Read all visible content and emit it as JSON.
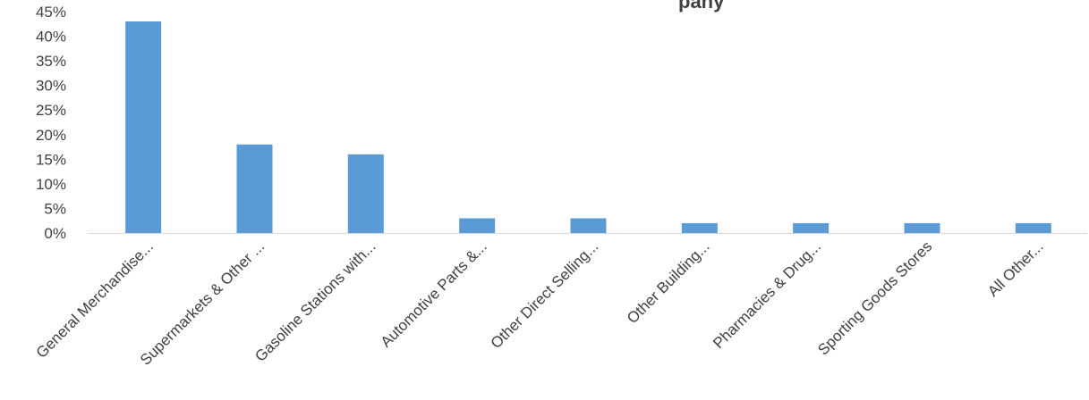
{
  "chart_data": {
    "type": "bar",
    "title": "",
    "title_visible_fragment": "pany",
    "xlabel": "",
    "ylabel": "",
    "categories": [
      "General Merchandise...",
      "Supermarkets & Other ...",
      "Gasoline Stations with...",
      "Automotive Parts &...",
      "Other Direct Selling...",
      "Other Building...",
      "Pharmacies & Drug...",
      "Sporting Goods Stores",
      "All Other..."
    ],
    "values": [
      0.43,
      0.18,
      0.16,
      0.03,
      0.03,
      0.02,
      0.02,
      0.02,
      0.02
    ],
    "ylim": [
      0,
      0.45
    ],
    "yticks": [
      0,
      0.05,
      0.1,
      0.15,
      0.2,
      0.25,
      0.3,
      0.35,
      0.4,
      0.45
    ],
    "ytick_labels": [
      "0%",
      "5%",
      "10%",
      "15%",
      "20%",
      "25%",
      "30%",
      "35%",
      "40%",
      "45%"
    ],
    "grid": false,
    "legend": "none",
    "bar_color": "#5b9bd5",
    "axis_color": "#d9d9d9",
    "text_color": "#404040"
  }
}
